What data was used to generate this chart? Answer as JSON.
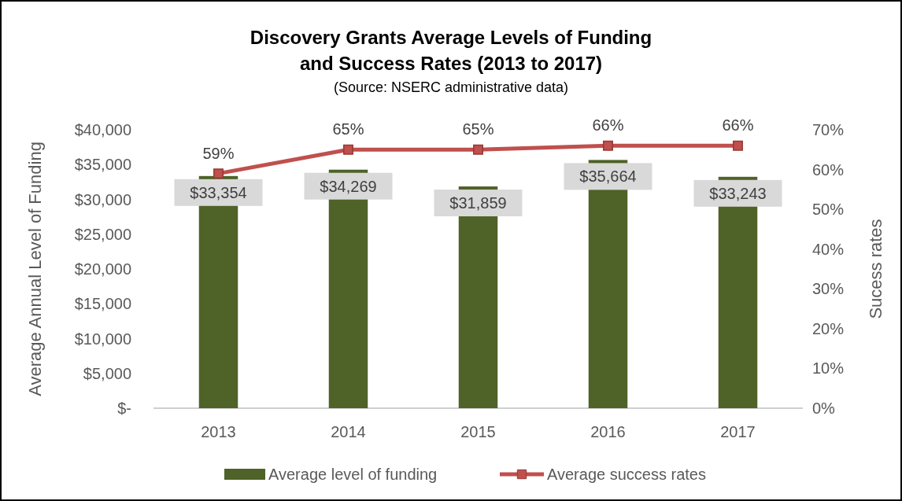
{
  "chart_data": {
    "type": "bar",
    "title": "Discovery Grants Average Levels of Funding\nand Success Rates (2013 to 2017)",
    "subtitle": "(Source: NSERC administrative data)",
    "ylabel": "Average Annual Level of Funding",
    "y2label": "Sucess rates",
    "categories": [
      "2013",
      "2014",
      "2015",
      "2016",
      "2017"
    ],
    "series": [
      {
        "name": "Average level of funding",
        "color": "#4f6228",
        "values": [
          33354,
          34269,
          31859,
          35664,
          33243
        ],
        "value_labels": [
          "$33,354",
          "$34,269",
          "$31,859",
          "$35,664",
          "$33,243"
        ]
      },
      {
        "name": "Average success rates",
        "type": "line",
        "axis": "y2",
        "color": "#c0504d",
        "marker": "square",
        "values": [
          59,
          65,
          65,
          66,
          66
        ],
        "value_labels": [
          "59%",
          "65%",
          "65%",
          "66%",
          "66%"
        ]
      }
    ],
    "ylim": [
      0,
      40000
    ],
    "yticks": [
      {
        "value": 0,
        "label": "$-"
      },
      {
        "value": 5000,
        "label": "$5,000"
      },
      {
        "value": 10000,
        "label": "$10,000"
      },
      {
        "value": 15000,
        "label": "$15,000"
      },
      {
        "value": 20000,
        "label": "$20,000"
      },
      {
        "value": 25000,
        "label": "$25,000"
      },
      {
        "value": 30000,
        "label": "$30,000"
      },
      {
        "value": 35000,
        "label": "$35,000"
      },
      {
        "value": 40000,
        "label": "$40,000"
      }
    ],
    "y2lim": [
      0,
      70
    ],
    "y2ticks": [
      {
        "value": 0,
        "label": "0%"
      },
      {
        "value": 10,
        "label": "10%"
      },
      {
        "value": 20,
        "label": "20%"
      },
      {
        "value": 30,
        "label": "30%"
      },
      {
        "value": 40,
        "label": "40%"
      },
      {
        "value": 50,
        "label": "50%"
      },
      {
        "value": 60,
        "label": "60%"
      },
      {
        "value": 70,
        "label": "70%"
      }
    ],
    "legend": "bottom",
    "grid": false
  }
}
